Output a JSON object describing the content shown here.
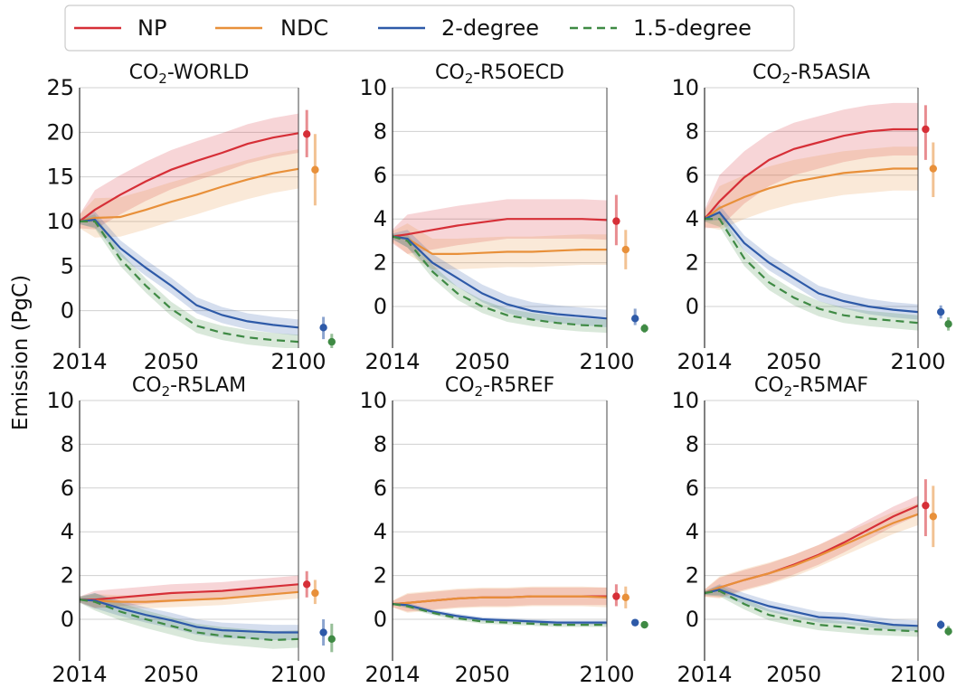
{
  "figure": {
    "ylabel": "Emission (PgC)",
    "legend": {
      "placement": "top",
      "entries": [
        {
          "name": "NP",
          "color": "#d62f37",
          "style": "solid"
        },
        {
          "name": "NDC",
          "color": "#e8903a",
          "style": "solid"
        },
        {
          "name": "2-degree",
          "color": "#2e5aa8",
          "style": "solid"
        },
        {
          "name": "1.5-degree",
          "color": "#3f8a44",
          "style": "dashed"
        }
      ]
    }
  },
  "chart_data": [
    {
      "type": "line",
      "title_prefix": "CO",
      "title_sub": "2",
      "title_suffix": "-WORLD",
      "x": [
        2014,
        2020,
        2030,
        2040,
        2050,
        2060,
        2070,
        2080,
        2090,
        2100
      ],
      "xticks": [
        2014,
        2050,
        2100
      ],
      "xlim": [
        2014,
        2100
      ],
      "ylim": [
        -4.2,
        25
      ],
      "yticks": [
        0,
        5,
        10,
        15,
        20,
        25
      ],
      "grid": true,
      "series": [
        {
          "name": "NP",
          "values": [
            10.0,
            11.3,
            13.0,
            14.5,
            15.8,
            16.8,
            17.7,
            18.7,
            19.4,
            19.9
          ],
          "band": 2.2,
          "end": {
            "mid": 19.8,
            "lo": 17.2,
            "hi": 22.5
          }
        },
        {
          "name": "NDC",
          "values": [
            10.0,
            10.4,
            10.5,
            11.3,
            12.2,
            13.0,
            13.9,
            14.7,
            15.4,
            15.9
          ],
          "band": 2.2,
          "end": {
            "mid": 15.8,
            "lo": 11.8,
            "hi": 19.8
          }
        },
        {
          "name": "2-degree",
          "values": [
            10.0,
            10.2,
            7.0,
            4.8,
            2.8,
            0.6,
            -0.5,
            -1.2,
            -1.6,
            -1.9
          ],
          "band": 0.9,
          "end": {
            "mid": -1.9,
            "lo": -3.2,
            "hi": -0.7
          }
        },
        {
          "name": "1.5-degree",
          "values": [
            10.0,
            10.0,
            5.8,
            2.8,
            0.2,
            -1.7,
            -2.5,
            -3.0,
            -3.3,
            -3.5
          ],
          "band": 0.8,
          "end": {
            "mid": -3.5,
            "lo": -4.3,
            "hi": -2.6
          }
        }
      ]
    },
    {
      "type": "line",
      "title_prefix": "CO",
      "title_sub": "2",
      "title_suffix": "-R5OECD",
      "x": [
        2014,
        2020,
        2030,
        2040,
        2050,
        2060,
        2070,
        2080,
        2090,
        2100
      ],
      "xticks": [
        2014,
        2050,
        2100
      ],
      "xlim": [
        2014,
        2100
      ],
      "ylim": [
        -1.9,
        10
      ],
      "yticks": [
        0,
        2,
        4,
        6,
        8,
        10
      ],
      "grid": true,
      "series": [
        {
          "name": "NP",
          "values": [
            3.2,
            3.3,
            3.5,
            3.7,
            3.85,
            4.0,
            4.0,
            4.0,
            4.0,
            3.95
          ],
          "band": 0.9,
          "end": {
            "mid": 3.9,
            "lo": 2.8,
            "hi": 5.1
          }
        },
        {
          "name": "NDC",
          "values": [
            3.2,
            3.1,
            2.4,
            2.4,
            2.45,
            2.5,
            2.5,
            2.55,
            2.6,
            2.6
          ],
          "band": 0.7,
          "end": {
            "mid": 2.6,
            "lo": 1.7,
            "hi": 3.5
          }
        },
        {
          "name": "2-degree",
          "values": [
            3.2,
            3.1,
            2.0,
            1.3,
            0.6,
            0.1,
            -0.2,
            -0.35,
            -0.45,
            -0.55
          ],
          "band": 0.4,
          "end": {
            "mid": -0.55,
            "lo": -0.85,
            "hi": -0.1
          }
        },
        {
          "name": "1.5-degree",
          "values": [
            3.2,
            3.0,
            1.6,
            0.6,
            0.0,
            -0.4,
            -0.6,
            -0.75,
            -0.85,
            -0.9
          ],
          "band": 0.3,
          "end": {
            "mid": -1.0,
            "lo": -1.2,
            "hi": -0.8
          }
        }
      ]
    },
    {
      "type": "line",
      "title_prefix": "CO",
      "title_sub": "2",
      "title_suffix": "-R5ASIA",
      "x": [
        2014,
        2020,
        2030,
        2040,
        2050,
        2060,
        2070,
        2080,
        2090,
        2100
      ],
      "xticks": [
        2014,
        2050,
        2100
      ],
      "xlim": [
        2014,
        2100
      ],
      "ylim": [
        -1.9,
        10
      ],
      "yticks": [
        0,
        2,
        4,
        6,
        8,
        10
      ],
      "grid": true,
      "series": [
        {
          "name": "NP",
          "values": [
            4.0,
            4.8,
            5.9,
            6.7,
            7.2,
            7.5,
            7.8,
            8.0,
            8.1,
            8.1
          ],
          "band": 1.2,
          "end": {
            "mid": 8.1,
            "lo": 6.7,
            "hi": 9.2
          }
        },
        {
          "name": "NDC",
          "values": [
            4.0,
            4.5,
            5.0,
            5.4,
            5.7,
            5.9,
            6.1,
            6.2,
            6.3,
            6.3
          ],
          "band": 1.0,
          "end": {
            "mid": 6.3,
            "lo": 5.0,
            "hi": 7.5
          }
        },
        {
          "name": "2-degree",
          "values": [
            4.0,
            4.3,
            2.9,
            2.0,
            1.3,
            0.6,
            0.25,
            0.0,
            -0.15,
            -0.25
          ],
          "band": 0.35,
          "end": {
            "mid": -0.25,
            "lo": -0.55,
            "hi": 0.05
          }
        },
        {
          "name": "1.5-degree",
          "values": [
            4.0,
            4.0,
            2.2,
            1.1,
            0.4,
            -0.1,
            -0.4,
            -0.55,
            -0.65,
            -0.75
          ],
          "band": 0.35,
          "end": {
            "mid": -0.8,
            "lo": -1.1,
            "hi": -0.5
          }
        }
      ]
    },
    {
      "type": "line",
      "title_prefix": "CO",
      "title_sub": "2",
      "title_suffix": "-R5LAM",
      "x": [
        2014,
        2020,
        2030,
        2040,
        2050,
        2060,
        2070,
        2080,
        2090,
        2100
      ],
      "xticks": [
        2014,
        2050,
        2100
      ],
      "xlim": [
        2014,
        2100
      ],
      "ylim": [
        -1.9,
        10
      ],
      "yticks": [
        0,
        2,
        4,
        6,
        8,
        10
      ],
      "grid": true,
      "series": [
        {
          "name": "NP",
          "values": [
            0.9,
            0.9,
            1.0,
            1.1,
            1.2,
            1.25,
            1.3,
            1.4,
            1.5,
            1.6
          ],
          "band": 0.4,
          "end": {
            "mid": 1.6,
            "lo": 1.0,
            "hi": 2.2
          }
        },
        {
          "name": "NDC",
          "values": [
            0.9,
            0.85,
            0.8,
            0.8,
            0.85,
            0.9,
            0.95,
            1.05,
            1.15,
            1.25
          ],
          "band": 0.3,
          "end": {
            "mid": 1.2,
            "lo": 0.7,
            "hi": 1.8
          }
        },
        {
          "name": "2-degree",
          "values": [
            0.9,
            0.85,
            0.5,
            0.2,
            -0.05,
            -0.35,
            -0.5,
            -0.55,
            -0.6,
            -0.6
          ],
          "band": 0.35,
          "end": {
            "mid": -0.6,
            "lo": -1.2,
            "hi": 0.0
          }
        },
        {
          "name": "1.5-degree",
          "values": [
            0.9,
            0.8,
            0.35,
            0.0,
            -0.3,
            -0.6,
            -0.75,
            -0.85,
            -0.95,
            -0.9
          ],
          "band": 0.4,
          "end": {
            "mid": -0.9,
            "lo": -1.5,
            "hi": -0.2
          }
        }
      ]
    },
    {
      "type": "line",
      "title_prefix": "CO",
      "title_sub": "2",
      "title_suffix": "-R5REF",
      "x": [
        2014,
        2020,
        2030,
        2040,
        2050,
        2060,
        2070,
        2080,
        2090,
        2100
      ],
      "xticks": [
        2014,
        2050,
        2100
      ],
      "xlim": [
        2014,
        2100
      ],
      "ylim": [
        -1.9,
        10
      ],
      "yticks": [
        0,
        2,
        4,
        6,
        8,
        10
      ],
      "grid": true,
      "series": [
        {
          "name": "NP",
          "values": [
            0.7,
            0.75,
            0.85,
            0.95,
            1.0,
            1.0,
            1.05,
            1.05,
            1.05,
            1.05
          ],
          "band": 0.4,
          "end": {
            "mid": 1.05,
            "lo": 0.6,
            "hi": 1.6
          }
        },
        {
          "name": "NDC",
          "values": [
            0.7,
            0.75,
            0.85,
            0.95,
            1.0,
            1.0,
            1.05,
            1.05,
            1.05,
            1.0
          ],
          "band": 0.45,
          "end": {
            "mid": 1.0,
            "lo": 0.5,
            "hi": 1.5
          }
        },
        {
          "name": "2-degree",
          "values": [
            0.7,
            0.65,
            0.35,
            0.15,
            0.0,
            -0.05,
            -0.1,
            -0.15,
            -0.15,
            -0.15
          ],
          "band": 0.1,
          "end": {
            "mid": -0.15,
            "lo": -0.3,
            "hi": 0.0
          }
        },
        {
          "name": "1.5-degree",
          "values": [
            0.7,
            0.6,
            0.3,
            0.05,
            -0.1,
            -0.15,
            -0.2,
            -0.25,
            -0.25,
            -0.25
          ],
          "band": 0.1,
          "end": {
            "mid": -0.25,
            "lo": -0.4,
            "hi": -0.1
          }
        }
      ]
    },
    {
      "type": "line",
      "title_prefix": "CO",
      "title_sub": "2",
      "title_suffix": "-R5MAF",
      "x": [
        2014,
        2020,
        2030,
        2040,
        2050,
        2060,
        2070,
        2080,
        2090,
        2100
      ],
      "xticks": [
        2014,
        2050,
        2100
      ],
      "xlim": [
        2014,
        2100
      ],
      "ylim": [
        -1.9,
        10
      ],
      "yticks": [
        0,
        2,
        4,
        6,
        8,
        10
      ],
      "grid": true,
      "series": [
        {
          "name": "NP",
          "values": [
            1.2,
            1.45,
            1.8,
            2.1,
            2.5,
            2.95,
            3.5,
            4.1,
            4.7,
            5.2
          ],
          "band": 0.45,
          "end": {
            "mid": 5.2,
            "lo": 3.8,
            "hi": 6.4
          }
        },
        {
          "name": "NDC",
          "values": [
            1.2,
            1.45,
            1.8,
            2.1,
            2.45,
            2.9,
            3.4,
            3.9,
            4.4,
            4.8
          ],
          "band": 0.5,
          "end": {
            "mid": 4.7,
            "lo": 3.3,
            "hi": 6.1
          }
        },
        {
          "name": "2-degree",
          "values": [
            1.2,
            1.35,
            0.95,
            0.6,
            0.35,
            0.1,
            0.05,
            -0.1,
            -0.25,
            -0.3
          ],
          "band": 0.25,
          "end": {
            "mid": -0.25,
            "lo": -0.45,
            "hi": -0.05
          }
        },
        {
          "name": "1.5-degree",
          "values": [
            1.2,
            1.3,
            0.7,
            0.2,
            -0.05,
            -0.25,
            -0.35,
            -0.45,
            -0.5,
            -0.55
          ],
          "band": 0.25,
          "end": {
            "mid": -0.55,
            "lo": -0.75,
            "hi": -0.3
          }
        }
      ]
    }
  ]
}
